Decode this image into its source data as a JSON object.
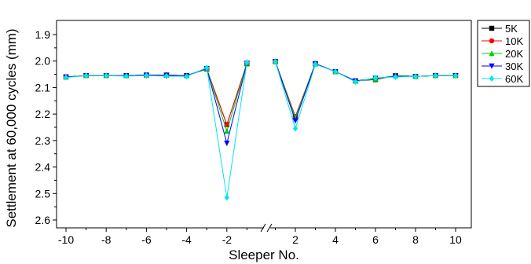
{
  "chart_data": {
    "type": "line",
    "xlabel": "Sleeper No.",
    "ylabel": "Settlement at 60,000 cycles (mm)",
    "y_inverted": true,
    "ylim": [
      1.9,
      2.6
    ],
    "y_ticks": [
      1.9,
      2.0,
      2.1,
      2.2,
      2.3,
      2.4,
      2.5,
      2.6
    ],
    "y_tick_labels": [
      "1.9",
      "2.0",
      "2.1",
      "2.2",
      "2.3",
      "2.4",
      "2.5",
      "2.6"
    ],
    "x_ticks_left": [
      -10,
      -8,
      -6,
      -4,
      -2
    ],
    "x_ticks_right": [
      2,
      4,
      6,
      8,
      10
    ],
    "x_tick_labels_left": [
      "-10",
      "-8",
      "-6",
      "-4",
      "-2"
    ],
    "x_tick_labels_right": [
      "2",
      "4",
      "6",
      "8",
      "10"
    ],
    "axis_break": true,
    "legend_position": "top-right",
    "x_left": [
      -10,
      -9,
      -8,
      -7,
      -6,
      -5,
      -4,
      -3,
      -2,
      -1
    ],
    "x_right": [
      1,
      2,
      3,
      4,
      5,
      6,
      7,
      8,
      9,
      10
    ],
    "series": [
      {
        "name": "5K",
        "color": "#000000",
        "marker": "square",
        "left": [
          2.06,
          2.055,
          2.055,
          2.055,
          2.053,
          2.053,
          2.055,
          2.03,
          2.24,
          2.01
        ],
        "right": [
          2.002,
          2.21,
          2.01,
          2.04,
          2.075,
          2.07,
          2.055,
          2.058,
          2.055,
          2.055
        ]
      },
      {
        "name": "10K",
        "color": "#ff0000",
        "marker": "circle",
        "left": [
          2.06,
          2.055,
          2.055,
          2.055,
          2.053,
          2.053,
          2.055,
          2.03,
          2.24,
          2.008
        ],
        "right": [
          2.002,
          2.21,
          2.01,
          2.04,
          2.075,
          2.068,
          2.055,
          2.058,
          2.055,
          2.055
        ]
      },
      {
        "name": "20K",
        "color": "#00cc00",
        "marker": "triangle-up",
        "left": [
          2.06,
          2.055,
          2.055,
          2.055,
          2.053,
          2.053,
          2.055,
          2.028,
          2.265,
          2.008
        ],
        "right": [
          2.002,
          2.215,
          2.01,
          2.04,
          2.075,
          2.068,
          2.055,
          2.058,
          2.055,
          2.055
        ]
      },
      {
        "name": "30K",
        "color": "#0000ff",
        "marker": "triangle-down",
        "left": [
          2.06,
          2.055,
          2.055,
          2.055,
          2.053,
          2.053,
          2.055,
          2.028,
          2.31,
          2.008
        ],
        "right": [
          2.002,
          2.225,
          2.01,
          2.04,
          2.075,
          2.065,
          2.058,
          2.058,
          2.055,
          2.055
        ]
      },
      {
        "name": "60K",
        "color": "#00e5ee",
        "marker": "diamond",
        "left": [
          2.062,
          2.055,
          2.055,
          2.057,
          2.055,
          2.057,
          2.058,
          2.025,
          2.515,
          2.005
        ],
        "right": [
          2.002,
          2.255,
          2.012,
          2.04,
          2.078,
          2.063,
          2.06,
          2.058,
          2.055,
          2.055
        ]
      }
    ]
  }
}
